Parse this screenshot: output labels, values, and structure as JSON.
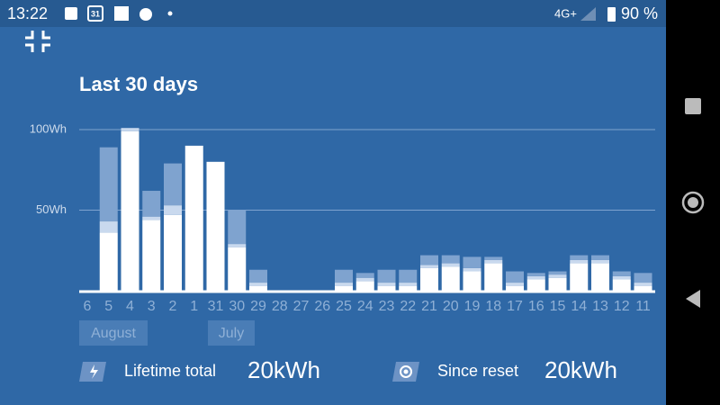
{
  "status_bar": {
    "time": "13:22",
    "calendar_day": "31",
    "network": "4G+",
    "battery": "90 %"
  },
  "chart_data": {
    "type": "stacked-bar",
    "title": "Last 30 days",
    "categories": [
      "6",
      "5",
      "4",
      "3",
      "2",
      "1",
      "31",
      "30",
      "29",
      "28",
      "27",
      "26",
      "25",
      "24",
      "23",
      "22",
      "21",
      "20",
      "19",
      "18",
      "17",
      "16",
      "15",
      "14",
      "13",
      "12",
      "11"
    ],
    "series": [
      {
        "color": "#ffffff",
        "values": [
          0,
          36,
          99,
          44,
          47,
          90,
          80,
          27,
          3,
          0,
          0,
          0,
          3,
          6,
          3,
          3,
          14,
          15,
          12,
          17,
          3,
          7,
          8,
          17,
          17,
          7,
          3
        ]
      },
      {
        "color": "#c9d9ee",
        "values": [
          0,
          7,
          2,
          2,
          6,
          0,
          0,
          2,
          2,
          0,
          0,
          0,
          2,
          2,
          2,
          2,
          2,
          2,
          2,
          2,
          2,
          2,
          2,
          2,
          2,
          2,
          2
        ]
      },
      {
        "color": "#7fa3cf",
        "values": [
          0,
          46,
          0,
          16,
          26,
          0,
          0,
          21,
          8,
          0,
          0,
          0,
          8,
          3,
          8,
          8,
          6,
          5,
          7,
          2,
          7,
          2,
          2,
          3,
          3,
          3,
          6
        ]
      }
    ],
    "ylim": [
      0,
      100
    ],
    "yticks": [
      {
        "value": 50,
        "label": "50Wh"
      },
      {
        "value": 100,
        "label": "100Wh"
      }
    ],
    "grid": true,
    "month_labels": [
      "August",
      "July"
    ]
  },
  "footer": {
    "lifetime_label": "Lifetime total",
    "lifetime_value": "20kWh",
    "reset_label": "Since reset",
    "reset_value": "20kWh"
  }
}
